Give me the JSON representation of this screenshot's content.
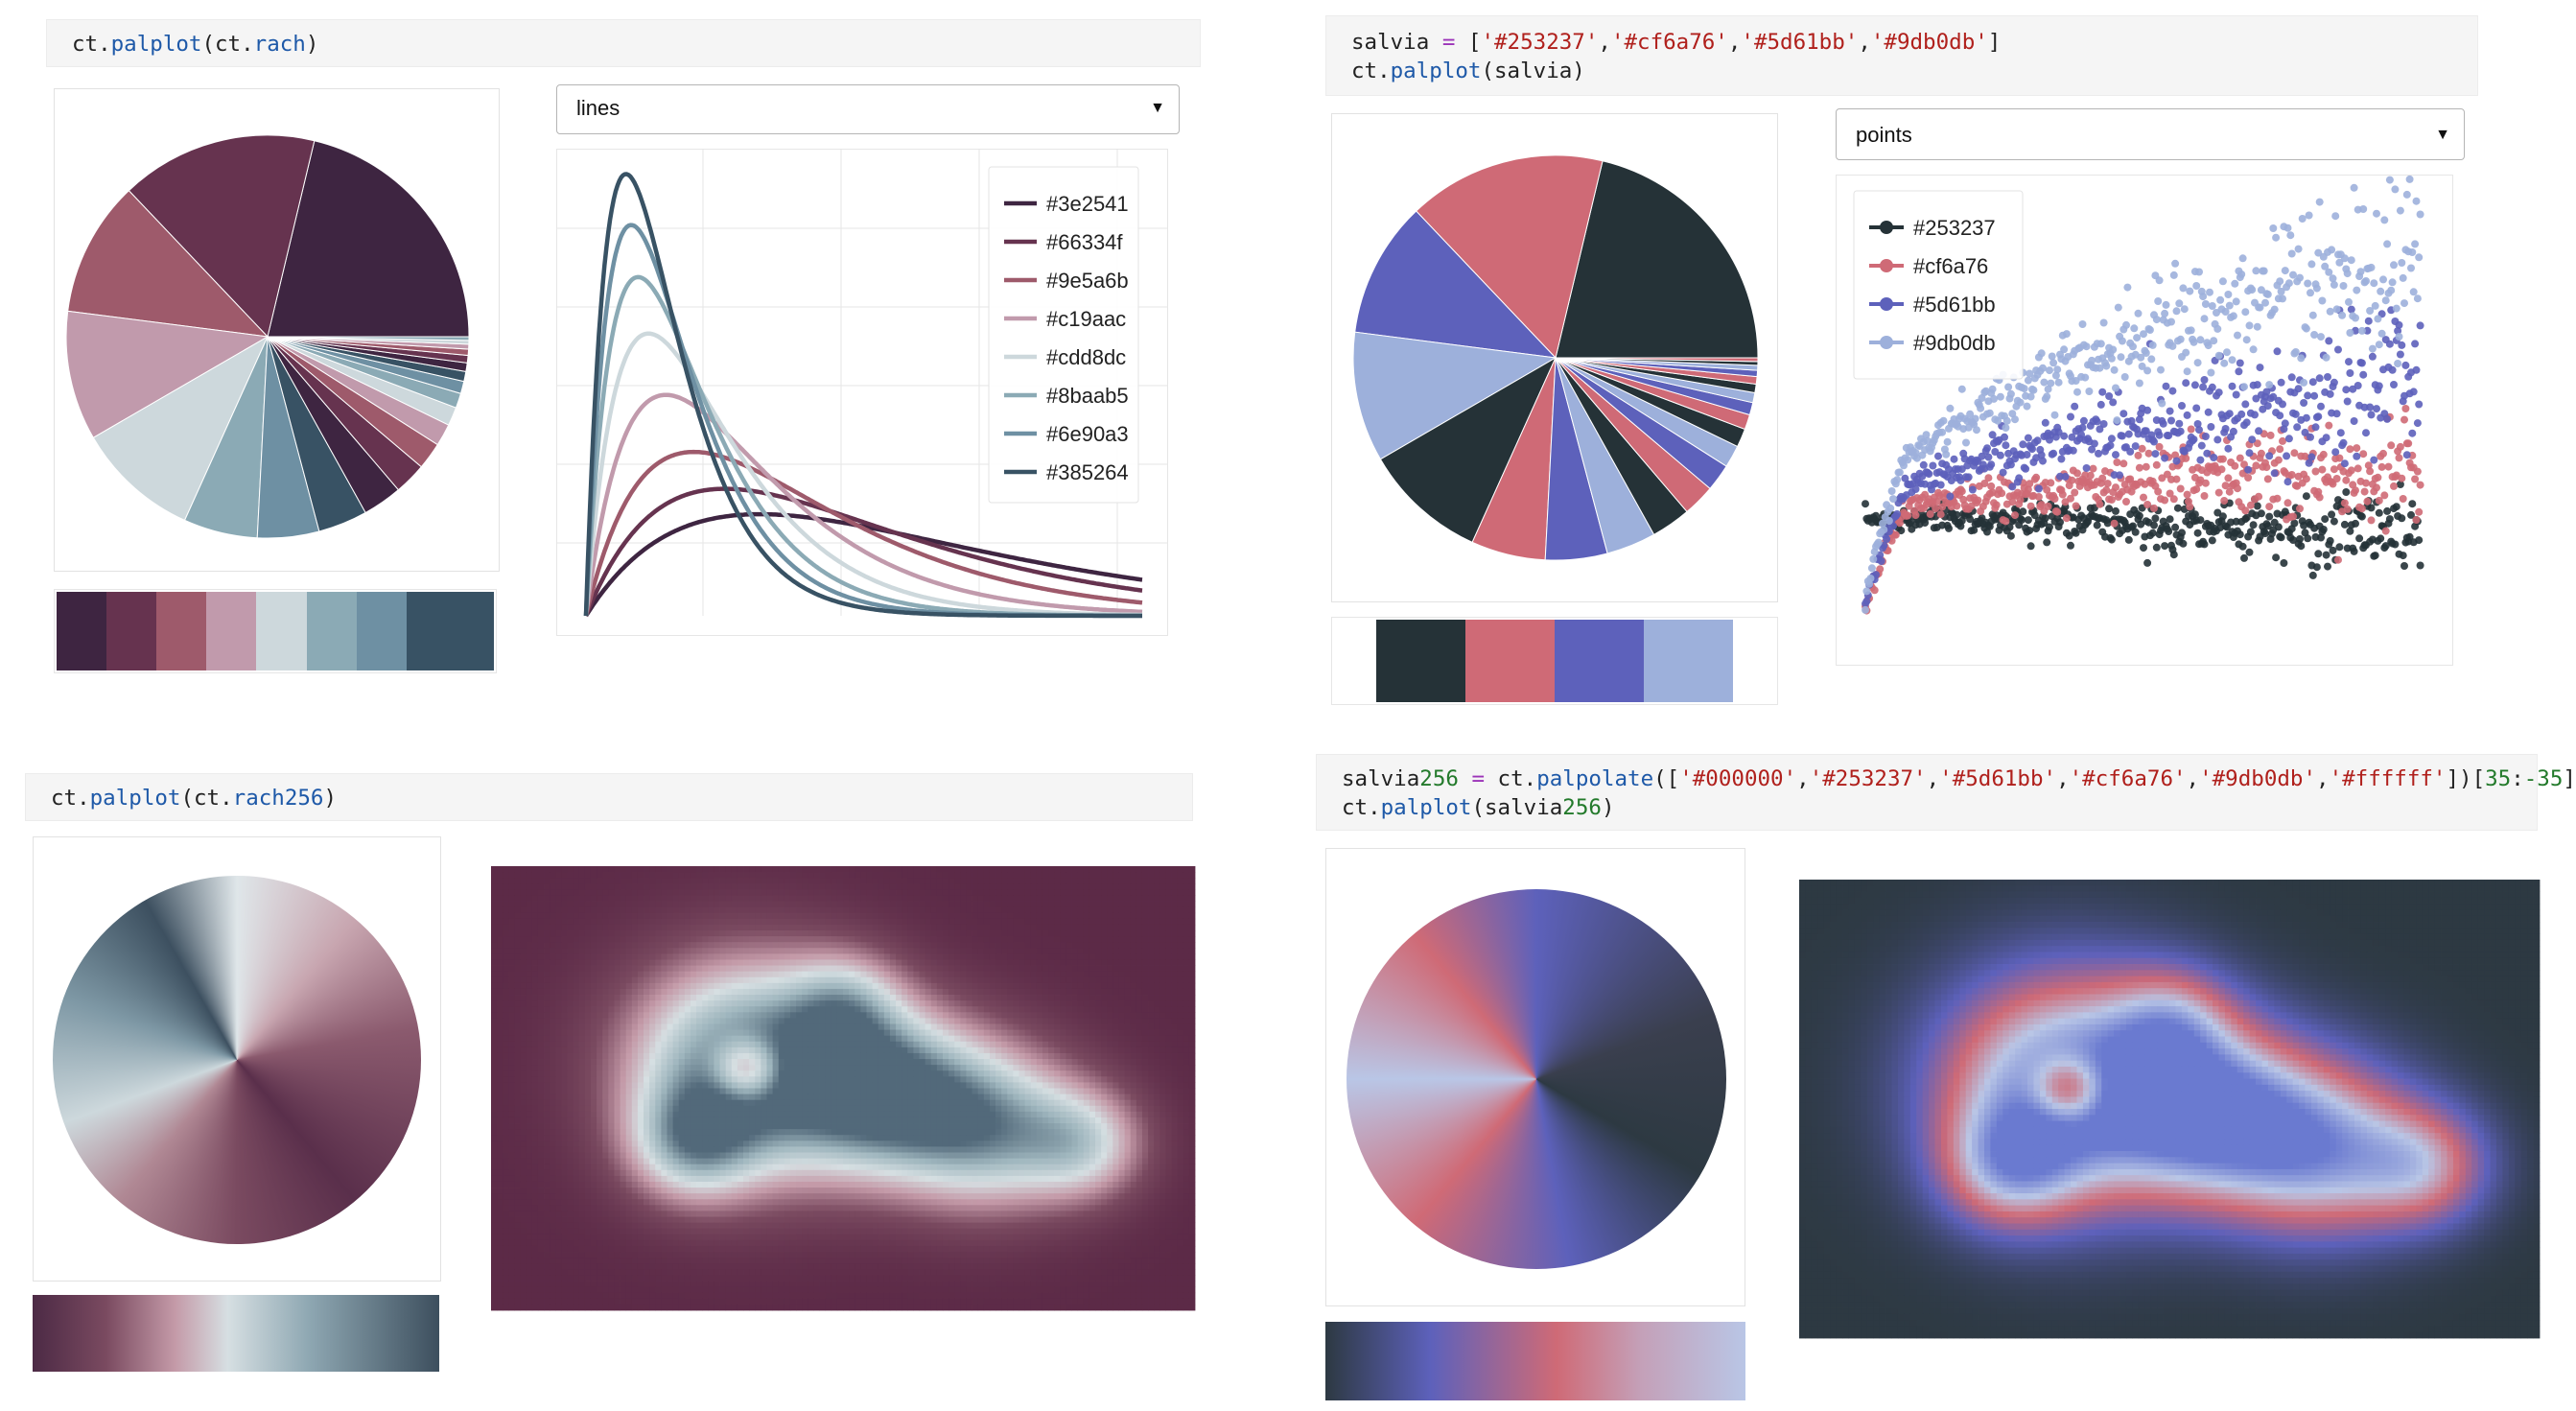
{
  "cells": {
    "c1": {
      "code": [
        "ct.palplot(ct.rach)"
      ]
    },
    "c2": {
      "code": [
        "salvia = ['#253237','#cf6a76','#5d61bb','#9db0db']",
        "ct.palplot(salvia)"
      ]
    },
    "c3": {
      "code": [
        "ct.palplot(ct.rach256)"
      ]
    },
    "c4": {
      "code": [
        "salvia256 = ct.palpolate(['#000000','#253237','#5d61bb','#cf6a76','#9db0db','#ffffff'])[35:-35]",
        "ct.palplot(salvia256)"
      ]
    }
  },
  "dropdown_lines": {
    "value": "lines"
  },
  "dropdown_points": {
    "value": "points"
  },
  "legend_lines": [
    {
      "label": "#3e2541",
      "color": "#3e2541"
    },
    {
      "label": "#66334f",
      "color": "#66334f"
    },
    {
      "label": "#9e5a6b",
      "color": "#9e5a6b"
    },
    {
      "label": "#c19aac",
      "color": "#c19aac"
    },
    {
      "label": "#cdd8dc",
      "color": "#cdd8dc"
    },
    {
      "label": "#8baab5",
      "color": "#8baab5"
    },
    {
      "label": "#6e90a3",
      "color": "#6e90a3"
    },
    {
      "label": "#385264",
      "color": "#385264"
    }
  ],
  "legend_points": [
    {
      "label": "#253237",
      "color": "#253237"
    },
    {
      "label": "#cf6a76",
      "color": "#cf6a76"
    },
    {
      "label": "#5d61bb",
      "color": "#5d61bb"
    },
    {
      "label": "#9db0db",
      "color": "#9db0db"
    }
  ],
  "palettes": {
    "rach": [
      "#3e2541",
      "#66334f",
      "#9e5a6b",
      "#c19aac",
      "#cdd8dc",
      "#8baab5",
      "#6e90a3",
      "#385264"
    ],
    "salvia": [
      "#253237",
      "#cf6a76",
      "#5d61bb",
      "#9db0db"
    ],
    "rach256_stops": [
      "#4c2a45",
      "#7a4a60",
      "#c49aa8",
      "#d6dfe2",
      "#8ea7b2",
      "#3d4f5e"
    ],
    "salvia256_stops": [
      "#2d3942",
      "#5d61bb",
      "#cf6a76",
      "#c4a0b8",
      "#b9c6e6"
    ]
  },
  "chart_data": [
    {
      "type": "pie",
      "palette": "rach",
      "values": [
        21.5,
        16,
        11,
        10.5,
        10,
        6,
        5,
        4,
        3.2,
        2.6,
        2.2,
        1.8,
        1.5,
        1.2,
        1,
        0.8,
        0.7,
        0.6,
        0.5,
        0.4,
        0.3,
        0.3
      ]
    },
    {
      "type": "line",
      "palette": "rach",
      "series": [
        {
          "color": "#3e2541",
          "shape": 2.0,
          "scale": 1.0
        },
        {
          "color": "#66334f",
          "shape": 2.0,
          "scale": 0.8
        },
        {
          "color": "#9e5a6b",
          "shape": 2.0,
          "scale": 0.62
        },
        {
          "color": "#c19aac",
          "shape": 2.0,
          "scale": 0.46
        },
        {
          "color": "#cdd8dc",
          "shape": 2.0,
          "scale": 0.36
        },
        {
          "color": "#8baab5",
          "shape": 2.0,
          "scale": 0.3
        },
        {
          "color": "#6e90a3",
          "shape": 2.0,
          "scale": 0.26
        },
        {
          "color": "#385264",
          "shape": 2.0,
          "scale": 0.23
        }
      ],
      "legend": "top-right",
      "grid": true
    },
    {
      "type": "pie",
      "palette": "salvia",
      "values": [
        21.5,
        16,
        11,
        10.5,
        10,
        6,
        5,
        4,
        3.2,
        2.6,
        2.2,
        1.8,
        1.5,
        1.2,
        1,
        0.8,
        0.7,
        0.6,
        0.5,
        0.4,
        0.3,
        0.3
      ]
    },
    {
      "type": "scatter",
      "palette": "salvia",
      "series": [
        {
          "color": "#253237",
          "trend": 0.0
        },
        {
          "color": "#cf6a76",
          "trend": 0.3
        },
        {
          "color": "#5d61bb",
          "trend": 0.72
        },
        {
          "color": "#9db0db",
          "trend": 1.45
        }
      ],
      "legend": "top-left",
      "grid": false
    },
    {
      "type": "heatmap",
      "palette": "rach256_stops"
    },
    {
      "type": "heatmap",
      "palette": "salvia256_stops"
    }
  ]
}
